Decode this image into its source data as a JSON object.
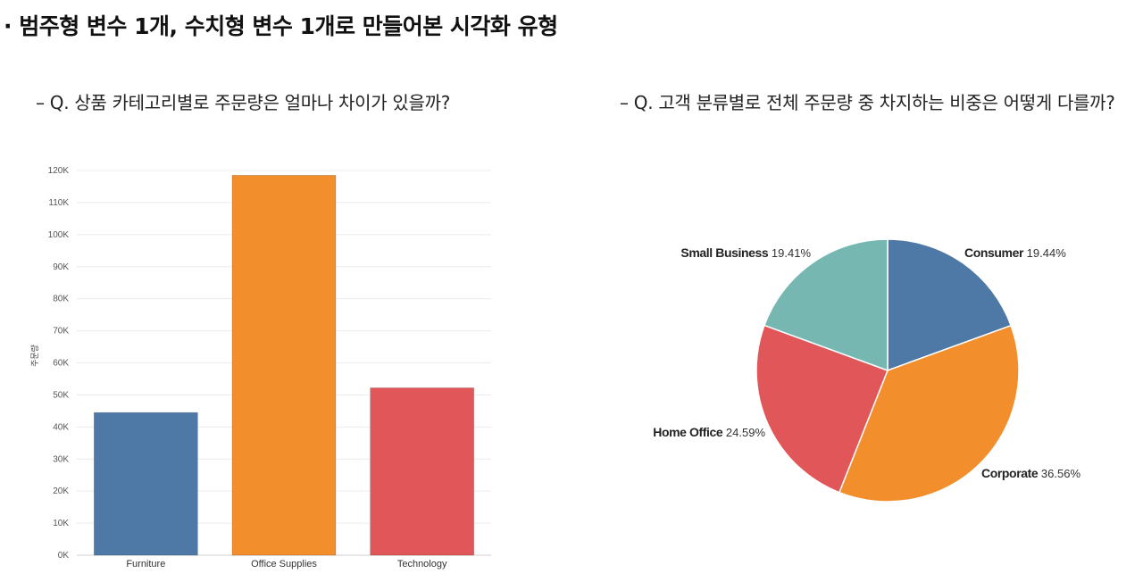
{
  "heading": "· 범주형 변수 1개, 수치형 변수 1개로 만들어본 시각화 유형",
  "questions": {
    "left": "–  Q. 상품 카테고리별로 주문량은 얼마나 차이가 있을까?",
    "right": "–  Q. 고객 분류별로 전체 주문량 중 차지하는 비중은 어떻게 다를까?"
  },
  "chart_data": [
    {
      "type": "bar",
      "title": "",
      "xlabel": "",
      "ylabel": "주문량",
      "categories": [
        "Furniture",
        "Office Supplies",
        "Technology"
      ],
      "values": [
        44500,
        118500,
        52200
      ],
      "colors": [
        "#4e79a7",
        "#f28e2b",
        "#e15759"
      ],
      "ylim": [
        0,
        120000
      ],
      "yticks": [
        0,
        10000,
        20000,
        30000,
        40000,
        50000,
        60000,
        70000,
        80000,
        90000,
        100000,
        110000,
        120000
      ],
      "ytick_labels": [
        "0K",
        "10K",
        "20K",
        "30K",
        "40K",
        "50K",
        "60K",
        "70K",
        "80K",
        "90K",
        "100K",
        "110K",
        "120K"
      ],
      "grid": true
    },
    {
      "type": "pie",
      "title": "",
      "slices": [
        {
          "label": "Consumer",
          "value_label": "19.44%",
          "value": 19.44,
          "color": "#4e79a7"
        },
        {
          "label": "Corporate",
          "value_label": "36.56%",
          "value": 36.56,
          "color": "#f28e2b"
        },
        {
          "label": "Home Office",
          "value_label": "24.59%",
          "value": 24.59,
          "color": "#e15759"
        },
        {
          "label": "Small Business",
          "value_label": "19.41%",
          "value": 19.41,
          "color": "#76b7b2"
        }
      ]
    }
  ]
}
